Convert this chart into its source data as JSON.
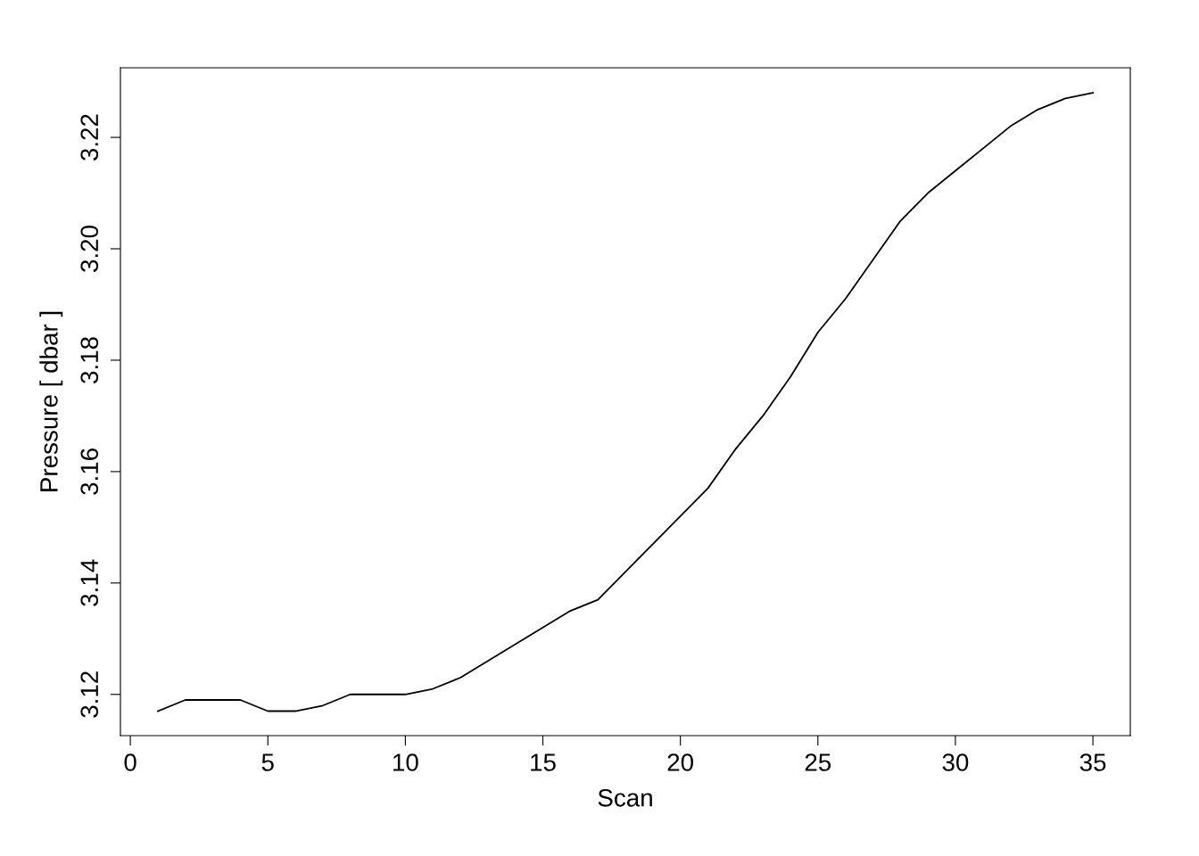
{
  "chart_data": {
    "type": "line",
    "xlabel": "Scan",
    "ylabel": "Pressure [ dbar ]",
    "x": [
      1,
      2,
      3,
      4,
      5,
      6,
      7,
      8,
      9,
      10,
      11,
      12,
      13,
      14,
      15,
      16,
      17,
      18,
      19,
      20,
      21,
      22,
      23,
      24,
      25,
      26,
      27,
      28,
      29,
      30,
      31,
      32,
      33,
      34,
      35
    ],
    "series": [
      {
        "color": "#000000",
        "values": [
          3.117,
          3.119,
          3.119,
          3.119,
          3.117,
          3.117,
          3.118,
          3.12,
          3.12,
          3.12,
          3.121,
          3.123,
          3.126,
          3.129,
          3.132,
          3.135,
          3.137,
          3.142,
          3.147,
          3.152,
          3.157,
          3.164,
          3.17,
          3.177,
          3.185,
          3.191,
          3.198,
          3.205,
          3.21,
          3.214,
          3.218,
          3.222,
          3.225,
          3.227,
          3.228
        ]
      }
    ],
    "xlim": [
      -0.36,
      36.36
    ],
    "ylim": [
      3.1126,
      3.2325
    ],
    "xticks": [
      0,
      5,
      10,
      15,
      20,
      25,
      30,
      35
    ],
    "yticks": [
      {
        "value": 3.12,
        "label": "3.12"
      },
      {
        "value": 3.14,
        "label": "3.14"
      },
      {
        "value": 3.16,
        "label": "3.16"
      },
      {
        "value": 3.18,
        "label": "3.18"
      },
      {
        "value": 3.2,
        "label": "3.20"
      },
      {
        "value": 3.22,
        "label": "3.22"
      }
    ],
    "grid": false,
    "legend": false,
    "marker": "none",
    "line_style": "solid"
  }
}
